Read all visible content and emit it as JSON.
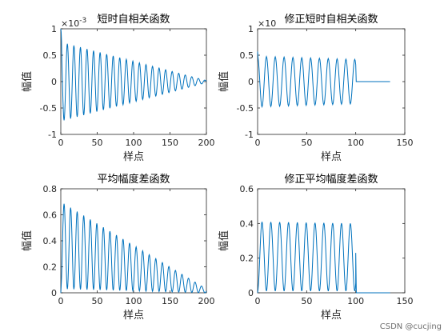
{
  "chart_data": [
    {
      "type": "line",
      "title": "短时自相关函数",
      "xlabel": "样点",
      "ylabel": "幅值",
      "exponent_label": "×10^-3",
      "xlim": [
        0,
        200
      ],
      "ylim": [
        -1,
        1
      ],
      "xticks": [
        0,
        50,
        100,
        150,
        200
      ],
      "yticks": [
        -1,
        -0.5,
        0,
        0.5,
        1
      ],
      "series": [
        {
          "envelope_start": 1.0,
          "oscillation": {
            "period": 9,
            "amplitude_start": 0.75,
            "amplitude_end": 0.02
          },
          "x_range": [
            0,
            200
          ]
        }
      ]
    },
    {
      "type": "line",
      "title": "修正短时自相关函数",
      "xlabel": "样点",
      "ylabel": "幅值",
      "exponent_label": "×10",
      "xlim": [
        0,
        150
      ],
      "ylim": [
        -1,
        1
      ],
      "xticks": [
        0,
        50,
        100,
        150
      ],
      "yticks": [
        -1,
        -0.5,
        0,
        0.5,
        1
      ],
      "series": [
        {
          "start_value": 0.57,
          "oscillation": {
            "period": 9,
            "amplitude_start": 0.48,
            "amplitude_end": 0.42
          },
          "active_range": [
            0,
            100
          ],
          "flat_range": [
            100,
            135
          ],
          "flat_value": 0.0
        }
      ]
    },
    {
      "type": "line",
      "title": "平均幅度差函数",
      "xlabel": "样点",
      "ylabel": "幅值",
      "xlim": [
        0,
        200
      ],
      "ylim": [
        0,
        0.8
      ],
      "xticks": [
        0,
        50,
        100,
        150,
        200
      ],
      "yticks": [
        0,
        0.2,
        0.4,
        0.6,
        0.8
      ],
      "series": [
        {
          "oscillation": {
            "period": 9,
            "peak_start": 0.7,
            "peak_end": 0.03,
            "trough_start": 0.03,
            "trough_end": 0.0
          },
          "x_range": [
            0,
            200
          ]
        }
      ]
    },
    {
      "type": "line",
      "title": "修正平均幅度差函数",
      "xlabel": "样点",
      "ylabel": "幅值",
      "xlim": [
        0,
        150
      ],
      "ylim": [
        0,
        0.6
      ],
      "xticks": [
        0,
        50,
        100,
        150
      ],
      "yticks": [
        0,
        0.2,
        0.4,
        0.6
      ],
      "series": [
        {
          "oscillation": {
            "period": 9,
            "peak_start": 0.41,
            "peak_end": 0.4,
            "trough_start": 0.01,
            "trough_end": 0.01
          },
          "active_range": [
            0,
            100
          ],
          "flat_range": [
            100,
            135
          ],
          "flat_value": 0.0,
          "end_spike": 0.23
        }
      ]
    }
  ],
  "style": {
    "line_color": "#0072bd",
    "axis_color": "#262626",
    "background": "#ffffff"
  },
  "watermark": "CSDN @cucjing"
}
